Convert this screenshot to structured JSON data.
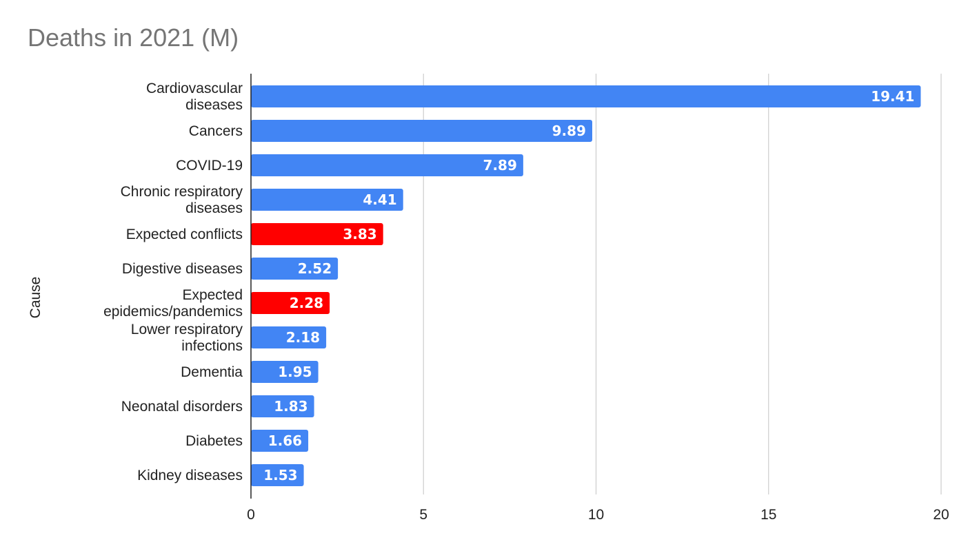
{
  "chart_data": {
    "type": "bar",
    "orientation": "horizontal",
    "title": "Deaths in 2021 (M)",
    "xlabel": "",
    "ylabel": "Cause",
    "xlim": [
      0,
      20
    ],
    "xticks": [
      0,
      5,
      10,
      15,
      20
    ],
    "grid": true,
    "legend": "none",
    "colors": {
      "default": "#4285f4",
      "highlight": "#ff0000"
    },
    "categories": [
      "Cardiovascular diseases",
      "Cancers",
      "COVID-19",
      "Chronic respiratory diseases",
      "Expected conflicts",
      "Digestive diseases",
      "Expected epidemics/pandemics",
      "Lower respiratory infections",
      "Dementia",
      "Neonatal disorders",
      "Diabetes",
      "Kidney diseases"
    ],
    "category_lines": [
      [
        "Cardiovascular",
        "diseases"
      ],
      [
        "Cancers"
      ],
      [
        "COVID-19"
      ],
      [
        "Chronic respiratory",
        "diseases"
      ],
      [
        "Expected conflicts"
      ],
      [
        "Digestive diseases"
      ],
      [
        "Expected",
        "epidemics/pandemics"
      ],
      [
        "Lower respiratory",
        "infections"
      ],
      [
        "Dementia"
      ],
      [
        "Neonatal disorders"
      ],
      [
        "Diabetes"
      ],
      [
        "Kidney diseases"
      ]
    ],
    "values": [
      19.41,
      9.89,
      7.89,
      4.41,
      3.83,
      2.52,
      2.28,
      2.18,
      1.95,
      1.83,
      1.66,
      1.53
    ],
    "data_labels": [
      "19.41",
      "9.89",
      "7.89",
      "4.41",
      "3.83",
      "2.52",
      "2.28",
      "2.18",
      "1.95",
      "1.83",
      "1.66",
      "1.53"
    ],
    "highlighted": [
      false,
      false,
      false,
      false,
      true,
      false,
      true,
      false,
      false,
      false,
      false,
      false
    ]
  }
}
